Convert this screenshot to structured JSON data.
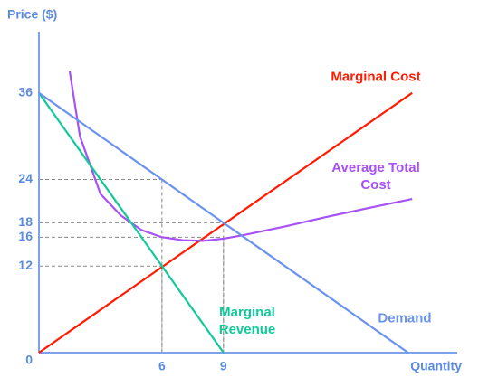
{
  "chart_data": {
    "type": "line",
    "ylabel": "Price ($)",
    "xlabel": "Quantity",
    "xlim": [
      0,
      20.4
    ],
    "ylim": [
      0,
      44.5
    ],
    "xticks": [
      6,
      9
    ],
    "yticks": [
      0,
      12,
      16,
      18,
      24,
      36
    ],
    "guides": [
      {
        "x": 6,
        "y": 24
      },
      {
        "x": 6,
        "y": 12
      },
      {
        "x": 9,
        "y": 18
      },
      {
        "x": 9,
        "y": 16
      }
    ],
    "series": [
      {
        "name": "Marginal Cost",
        "color": "#ff1a00",
        "x": [
          0,
          18.2
        ],
        "values": [
          0,
          36
        ]
      },
      {
        "name": "Average Total Cost",
        "color": "#a652f5",
        "x": [
          1.5,
          2,
          3,
          4,
          5,
          6,
          7,
          8,
          9,
          10,
          12,
          14,
          16,
          18.2
        ],
        "values": [
          39,
          30,
          22,
          19,
          17,
          16,
          15.6,
          15.5,
          15.8,
          16.3,
          17.5,
          18.8,
          20,
          21.3
        ]
      },
      {
        "name": "Marginal Revenue",
        "color": "#12c99a",
        "x": [
          0,
          9
        ],
        "values": [
          36,
          0
        ]
      },
      {
        "name": "Demand",
        "color": "#6a92ee",
        "x": [
          0,
          18
        ],
        "values": [
          36,
          0
        ]
      }
    ]
  }
}
